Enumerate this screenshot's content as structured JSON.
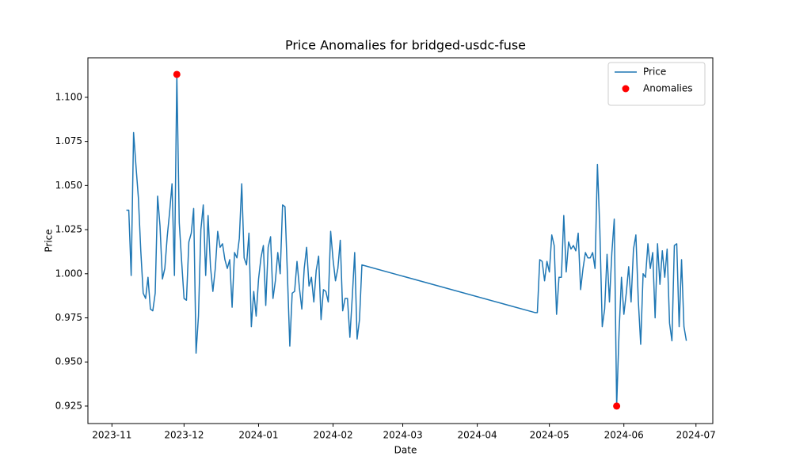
{
  "chart_data": {
    "type": "line",
    "title": "Price Anomalies for bridged-usdc-fuse",
    "x_label": "Date",
    "y_label": "Price",
    "xlim": [
      "2023-10-22",
      "2024-07-08"
    ],
    "xticks": [
      "2023-11",
      "2023-12",
      "2024-01",
      "2024-02",
      "2024-03",
      "2024-04",
      "2024-05",
      "2024-06",
      "2024-07"
    ],
    "ylim": [
      0.9151,
      1.1224
    ],
    "yticks": [
      0.925,
      {
        "value": 0.95,
        "label": "0.950"
      },
      0.975,
      {
        "value": 1,
        "label": "1.000"
      },
      1.025,
      {
        "value": 1.05,
        "label": "1.050"
      },
      1.075,
      {
        "value": 1.1,
        "label": "1.100"
      }
    ],
    "legend": "upper right",
    "series": [
      {
        "name": "Price",
        "type": "line",
        "color": "#1f77b4",
        "x": [
          "2023-11-07",
          "2023-11-08",
          "2023-11-09",
          "2023-11-10",
          "2023-11-11",
          "2023-11-12",
          "2023-11-13",
          "2023-11-14",
          "2023-11-15",
          "2023-11-16",
          "2023-11-17",
          "2023-11-18",
          "2023-11-19",
          "2023-11-20",
          "2023-11-21",
          "2023-11-22",
          "2023-11-23",
          "2023-11-24",
          "2023-11-25",
          "2023-11-26",
          "2023-11-27",
          "2023-11-28",
          "2023-11-29",
          "2023-11-30",
          "2023-12-01",
          "2023-12-02",
          "2023-12-03",
          "2023-12-04",
          "2023-12-05",
          "2023-12-06",
          "2023-12-07",
          "2023-12-08",
          "2023-12-09",
          "2023-12-10",
          "2023-12-11",
          "2023-12-12",
          "2023-12-13",
          "2023-12-14",
          "2023-12-15",
          "2023-12-16",
          "2023-12-17",
          "2023-12-18",
          "2023-12-19",
          "2023-12-20",
          "2023-12-21",
          "2023-12-22",
          "2023-12-23",
          "2023-12-24",
          "2023-12-25",
          "2023-12-26",
          "2023-12-27",
          "2023-12-28",
          "2023-12-29",
          "2023-12-30",
          "2023-12-31",
          "2024-01-01",
          "2024-01-02",
          "2024-01-03",
          "2024-01-04",
          "2024-01-05",
          "2024-01-06",
          "2024-01-07",
          "2024-01-08",
          "2024-01-09",
          "2024-01-10",
          "2024-01-11",
          "2024-01-12",
          "2024-01-13",
          "2024-01-14",
          "2024-01-15",
          "2024-01-16",
          "2024-01-17",
          "2024-01-18",
          "2024-01-19",
          "2024-01-20",
          "2024-01-21",
          "2024-01-22",
          "2024-01-23",
          "2024-01-24",
          "2024-01-25",
          "2024-01-26",
          "2024-01-27",
          "2024-01-28",
          "2024-01-29",
          "2024-01-30",
          "2024-01-31",
          "2024-02-01",
          "2024-02-02",
          "2024-02-03",
          "2024-02-04",
          "2024-02-05",
          "2024-02-06",
          "2024-02-07",
          "2024-02-08",
          "2024-02-09",
          "2024-02-10",
          "2024-02-11",
          "2024-02-12",
          "2024-02-13",
          "2024-04-25",
          "2024-04-26",
          "2024-04-27",
          "2024-04-28",
          "2024-04-29",
          "2024-04-30",
          "2024-05-01",
          "2024-05-02",
          "2024-05-03",
          "2024-05-04",
          "2024-05-05",
          "2024-05-06",
          "2024-05-07",
          "2024-05-08",
          "2024-05-09",
          "2024-05-10",
          "2024-05-11",
          "2024-05-12",
          "2024-05-13",
          "2024-05-14",
          "2024-05-15",
          "2024-05-16",
          "2024-05-17",
          "2024-05-18",
          "2024-05-19",
          "2024-05-20",
          "2024-05-21",
          "2024-05-22",
          "2024-05-23",
          "2024-05-24",
          "2024-05-25",
          "2024-05-26",
          "2024-05-27",
          "2024-05-28",
          "2024-05-29",
          "2024-05-30",
          "2024-05-31",
          "2024-06-01",
          "2024-06-02",
          "2024-06-03",
          "2024-06-04",
          "2024-06-05",
          "2024-06-06",
          "2024-06-07",
          "2024-06-08",
          "2024-06-09",
          "2024-06-10",
          "2024-06-11",
          "2024-06-12",
          "2024-06-13",
          "2024-06-14",
          "2024-06-15",
          "2024-06-16",
          "2024-06-17",
          "2024-06-18",
          "2024-06-19",
          "2024-06-20",
          "2024-06-21",
          "2024-06-22",
          "2024-06-23",
          "2024-06-24",
          "2024-06-25",
          "2024-06-26",
          "2024-06-27"
        ],
        "values": [
          1.036,
          1.036,
          0.999,
          1.08,
          1.061,
          1.043,
          1.013,
          0.989,
          0.986,
          0.998,
          0.98,
          0.979,
          0.989,
          1.044,
          1.027,
          0.997,
          1.003,
          1.021,
          1.035,
          1.051,
          0.999,
          1.113,
          1.029,
          1.007,
          0.986,
          0.985,
          1.018,
          1.023,
          1.037,
          0.955,
          0.976,
          1.025,
          1.039,
          0.999,
          1.033,
          1.004,
          0.99,
          1.003,
          1.024,
          1.015,
          1.017,
          1.008,
          1.003,
          1.008,
          0.981,
          1.012,
          1.009,
          1.02,
          1.051,
          1.009,
          1.005,
          1.023,
          0.97,
          0.99,
          0.976,
          0.997,
          1.009,
          1.016,
          0.982,
          1.015,
          1.021,
          0.986,
          0.996,
          1.012,
          1.0,
          1.039,
          1.038,
          1.0,
          0.959,
          0.989,
          0.99,
          1.007,
          0.992,
          0.98,
          1.003,
          1.015,
          0.993,
          0.998,
          0.984,
          1.002,
          1.01,
          0.974,
          0.991,
          0.99,
          0.984,
          1.024,
          1.008,
          0.996,
          1.003,
          1.019,
          0.979,
          0.986,
          0.986,
          0.964,
          0.987,
          1.012,
          0.963,
          0.974,
          1.005,
          0.978,
          0.978,
          1.008,
          1.007,
          0.996,
          1.007,
          1.001,
          1.022,
          1.016,
          0.977,
          0.998,
          0.998,
          1.033,
          1.001,
          1.018,
          1.014,
          1.016,
          1.013,
          1.023,
          0.991,
          1.003,
          1.012,
          1.009,
          1.009,
          1.012,
          1.003,
          1.062,
          1.025,
          0.97,
          0.98,
          1.011,
          0.984,
          1.012,
          1.031,
          0.925,
          0.967,
          0.998,
          0.977,
          0.989,
          1.004,
          0.984,
          1.014,
          1.022,
          0.985,
          0.96,
          1.0,
          0.998,
          1.017,
          1.003,
          1.012,
          0.975,
          1.017,
          0.994,
          1.013,
          0.998,
          1.014,
          0.972,
          0.962,
          1.016,
          1.017,
          0.97,
          1.008,
          0.97,
          0.962
        ]
      },
      {
        "name": "Anomalies",
        "type": "scatter",
        "color": "#ff0000",
        "x": [
          "2023-11-28",
          "2024-05-29"
        ],
        "values": [
          1.113,
          0.925
        ]
      }
    ]
  }
}
